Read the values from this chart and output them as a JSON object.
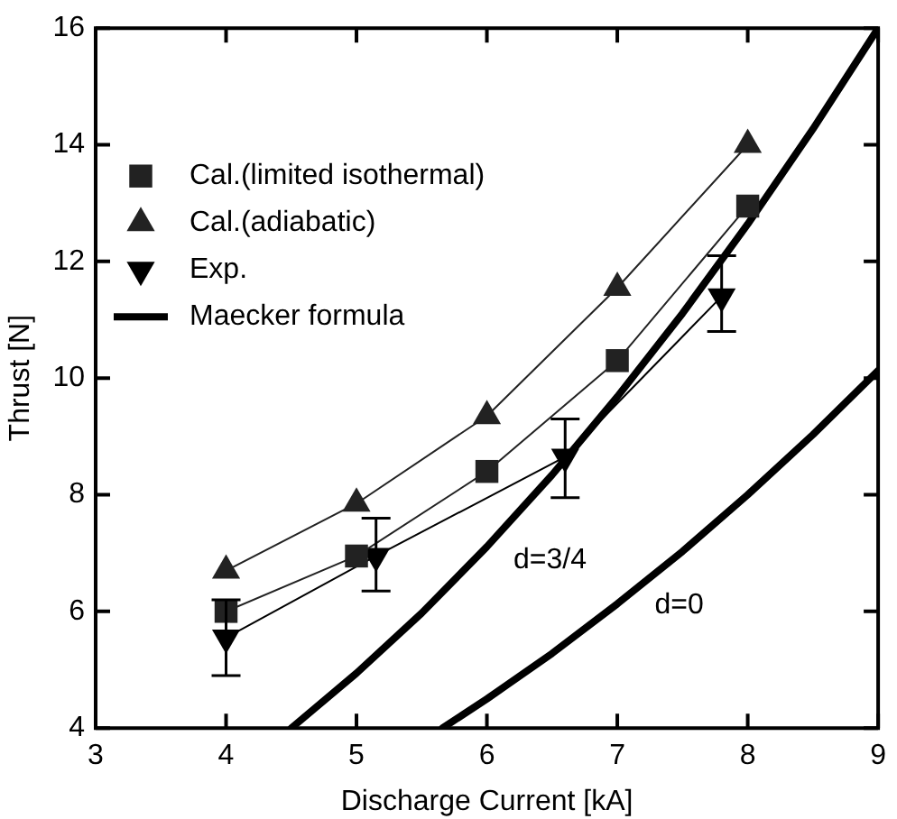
{
  "chart_data": {
    "type": "line",
    "xlabel": "Discharge Current [kA]",
    "ylabel": "Thrust [N]",
    "xlim": [
      3,
      9
    ],
    "xticks": [
      3,
      4,
      5,
      6,
      7,
      8,
      9
    ],
    "ylim": [
      4,
      16
    ],
    "yticks": [
      4,
      6,
      8,
      10,
      12,
      14,
      16
    ],
    "grid": false,
    "legend": "top left",
    "series": [
      {
        "name": "Cal.(limited isothermal)",
        "marker": "square",
        "color": "#222222",
        "x": [
          4,
          5,
          6,
          7,
          8
        ],
        "values": [
          6.0,
          6.95,
          8.4,
          10.3,
          12.95
        ]
      },
      {
        "name": "Cal.(adiabatic)",
        "marker": "triangle",
        "color": "#222222",
        "x": [
          4,
          5,
          6,
          7,
          8
        ],
        "values": [
          6.7,
          7.85,
          9.35,
          11.55,
          14.0
        ]
      },
      {
        "name": "Exp.",
        "marker": "triangle-down",
        "color": "#000000",
        "x": [
          4,
          5.15,
          6.6,
          7.8
        ],
        "values": [
          5.55,
          6.95,
          8.65,
          11.4
        ],
        "errors": [
          [
            4.9,
            6.2
          ],
          [
            6.35,
            7.6
          ],
          [
            7.95,
            9.3
          ],
          [
            10.8,
            12.1
          ]
        ]
      },
      {
        "name": "Maecker formula",
        "marker": "none",
        "color": "#000000",
        "x": [
          4.5,
          5,
          5.5,
          6,
          6.5,
          7,
          7.5,
          8,
          8.5,
          9
        ],
        "values": [
          4.0,
          4.94,
          5.97,
          7.11,
          8.34,
          9.68,
          11.11,
          12.64,
          14.27,
          16.0
        ]
      },
      {
        "marker": "none",
        "color": "#000000",
        "x": [
          5.66,
          6,
          6.5,
          7,
          7.5,
          8,
          8.5,
          9
        ],
        "values": [
          4.0,
          4.5,
          5.28,
          6.13,
          7.03,
          8.0,
          9.03,
          10.13
        ]
      }
    ],
    "annotations": [
      "d=3/4",
      "d=0"
    ]
  }
}
